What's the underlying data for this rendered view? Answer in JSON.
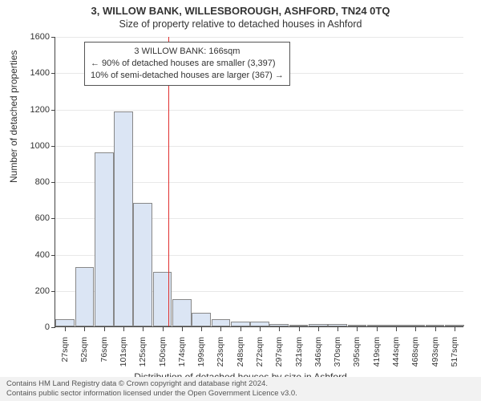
{
  "titles": {
    "main": "3, WILLOW BANK, WILLESBOROUGH, ASHFORD, TN24 0TQ",
    "sub": "Size of property relative to detached houses in Ashford"
  },
  "axes": {
    "xlabel": "Distribution of detached houses by size in Ashford",
    "ylabel": "Number of detached properties"
  },
  "annotation": {
    "line1": "3 WILLOW BANK: 166sqm",
    "line2": "← 90% of detached houses are smaller (3,397)",
    "line3": "10% of semi-detached houses are larger (367) →"
  },
  "chart": {
    "type": "histogram",
    "bar_color": "#dbe5f4",
    "bar_border": "#888888",
    "grid_color": "#e8e8e8",
    "ref_line_color": "#e03030",
    "ref_line_x_sqm": 166,
    "x_min_sqm": 27,
    "x_max_sqm": 530,
    "ylim": [
      0,
      1600
    ],
    "ytick_step": 200,
    "yticks": [
      0,
      200,
      400,
      600,
      800,
      1000,
      1200,
      1400,
      1600
    ],
    "xtick_labels": [
      "27sqm",
      "52sqm",
      "76sqm",
      "101sqm",
      "125sqm",
      "150sqm",
      "174sqm",
      "199sqm",
      "223sqm",
      "248sqm",
      "272sqm",
      "297sqm",
      "321sqm",
      "346sqm",
      "370sqm",
      "395sqm",
      "419sqm",
      "444sqm",
      "468sqm",
      "493sqm",
      "517sqm"
    ],
    "bar_values": [
      40,
      325,
      960,
      1185,
      680,
      300,
      150,
      75,
      40,
      25,
      25,
      15,
      10,
      12,
      12,
      8,
      5,
      3,
      3,
      3,
      3
    ]
  },
  "footer": {
    "line1": "Contains HM Land Registry data © Crown copyright and database right 2024.",
    "line2": "Contains public sector information licensed under the Open Government Licence v3.0."
  }
}
